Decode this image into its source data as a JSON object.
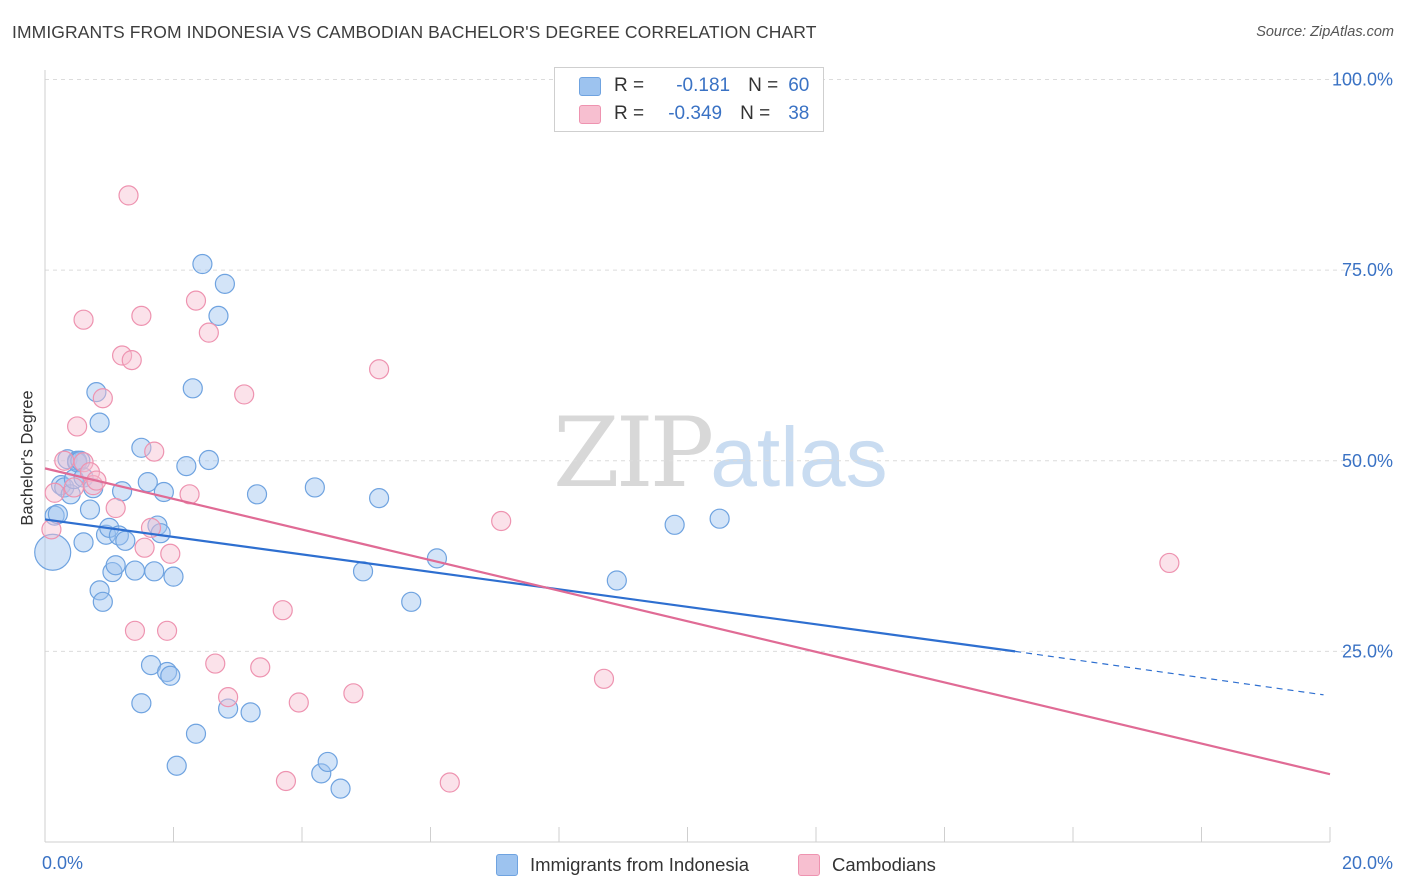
{
  "title": "IMMIGRANTS FROM INDONESIA VS CAMBODIAN BACHELOR'S DEGREE CORRELATION CHART",
  "source": "Source: ZipAtlas.com",
  "watermark": {
    "zip": "ZIP",
    "atlas": "atlas"
  },
  "legend": {
    "r_label": "R =",
    "n_label": "N =",
    "rows": [
      {
        "r": "-0.181",
        "n": "60",
        "color": "#9dc3ef",
        "border": "#6fa3e0"
      },
      {
        "r": "-0.349",
        "n": "38",
        "color": "#f7bfd0",
        "border": "#ee93b0"
      }
    ]
  },
  "chart_data": {
    "type": "scatter",
    "xlabel": "",
    "ylabel": "Bachelor's Degree",
    "xlim": [
      0,
      20
    ],
    "ylim": [
      0,
      105
    ],
    "x_tick_labels": [
      {
        "value": 0,
        "label": "0.0%"
      },
      {
        "value": 20,
        "label": "20.0%"
      }
    ],
    "y_tick_labels": [
      {
        "value": 25,
        "label": "25.0%"
      },
      {
        "value": 50,
        "label": "50.0%"
      },
      {
        "value": 75,
        "label": "75.0%"
      },
      {
        "value": 100,
        "label": "100.0%"
      }
    ],
    "grid": true,
    "legend_position": "bottom",
    "series": [
      {
        "name": "Immigrants from Indonesia",
        "color": "#9dc3ef",
        "stroke": "#6fa3e0",
        "line_color": "#2e6fd0",
        "trend": {
          "x0": 0,
          "y0": 42.3,
          "x1": 15.1,
          "y1": 25.0,
          "dash_x1": 19.9,
          "dash_y1": 19.3
        },
        "points": [
          [
            0.12,
            38.0
          ],
          [
            0.15,
            42.8
          ],
          [
            0.2,
            43.0
          ],
          [
            0.25,
            46.8
          ],
          [
            0.3,
            46.5
          ],
          [
            0.35,
            50.2
          ],
          [
            0.4,
            45.6
          ],
          [
            0.45,
            47.6
          ],
          [
            0.5,
            50.0
          ],
          [
            0.5,
            49.8
          ],
          [
            0.55,
            50.0
          ],
          [
            0.6,
            47.8
          ],
          [
            0.6,
            39.3
          ],
          [
            0.7,
            43.6
          ],
          [
            0.75,
            46.4
          ],
          [
            0.8,
            59.0
          ],
          [
            0.85,
            55.0
          ],
          [
            0.85,
            33.0
          ],
          [
            0.9,
            31.5
          ],
          [
            0.95,
            40.3
          ],
          [
            1.0,
            41.2
          ],
          [
            1.05,
            35.4
          ],
          [
            1.1,
            36.3
          ],
          [
            1.15,
            40.2
          ],
          [
            1.2,
            46.0
          ],
          [
            1.25,
            39.5
          ],
          [
            1.4,
            35.6
          ],
          [
            1.5,
            51.7
          ],
          [
            1.5,
            18.2
          ],
          [
            1.6,
            47.2
          ],
          [
            1.65,
            23.2
          ],
          [
            1.7,
            35.5
          ],
          [
            1.75,
            41.5
          ],
          [
            1.8,
            40.5
          ],
          [
            1.85,
            45.9
          ],
          [
            1.9,
            22.3
          ],
          [
            1.95,
            21.8
          ],
          [
            2.0,
            34.8
          ],
          [
            2.05,
            10.0
          ],
          [
            2.2,
            49.3
          ],
          [
            2.3,
            59.5
          ],
          [
            2.35,
            14.2
          ],
          [
            2.45,
            75.8
          ],
          [
            2.55,
            50.1
          ],
          [
            2.7,
            69.0
          ],
          [
            2.8,
            73.2
          ],
          [
            2.85,
            17.5
          ],
          [
            3.2,
            17.0
          ],
          [
            3.3,
            45.6
          ],
          [
            4.2,
            46.5
          ],
          [
            4.3,
            9.0
          ],
          [
            4.4,
            10.5
          ],
          [
            4.6,
            7.0
          ],
          [
            4.95,
            35.5
          ],
          [
            5.2,
            45.1
          ],
          [
            5.7,
            31.5
          ],
          [
            6.1,
            37.2
          ],
          [
            8.9,
            34.3
          ],
          [
            9.8,
            41.6
          ],
          [
            10.5,
            42.4
          ]
        ],
        "sizes": {
          "0": 36
        }
      },
      {
        "name": "Cambodians",
        "color": "#f7bfd0",
        "stroke": "#ee93b0",
        "line_color": "#e06b95",
        "trend": {
          "x0": 0,
          "y0": 49.0,
          "x1": 20.0,
          "y1": 8.9
        },
        "points": [
          [
            0.1,
            41.0
          ],
          [
            0.15,
            45.8
          ],
          [
            0.3,
            50.0
          ],
          [
            0.45,
            46.5
          ],
          [
            0.5,
            54.5
          ],
          [
            0.6,
            49.8
          ],
          [
            0.6,
            68.5
          ],
          [
            0.7,
            48.5
          ],
          [
            0.75,
            46.8
          ],
          [
            0.8,
            47.4
          ],
          [
            0.9,
            58.2
          ],
          [
            1.1,
            43.8
          ],
          [
            1.2,
            63.8
          ],
          [
            1.3,
            84.8
          ],
          [
            1.35,
            63.2
          ],
          [
            1.4,
            27.7
          ],
          [
            1.5,
            69.0
          ],
          [
            1.55,
            38.6
          ],
          [
            1.65,
            41.2
          ],
          [
            1.7,
            51.2
          ],
          [
            1.9,
            27.7
          ],
          [
            1.95,
            37.8
          ],
          [
            2.25,
            45.6
          ],
          [
            2.35,
            71.0
          ],
          [
            2.55,
            66.8
          ],
          [
            2.65,
            23.4
          ],
          [
            2.85,
            19.0
          ],
          [
            3.1,
            58.7
          ],
          [
            3.35,
            22.9
          ],
          [
            3.7,
            30.4
          ],
          [
            3.75,
            8.0
          ],
          [
            3.95,
            18.3
          ],
          [
            4.8,
            19.5
          ],
          [
            5.2,
            62.0
          ],
          [
            6.3,
            7.8
          ],
          [
            7.1,
            42.1
          ],
          [
            8.7,
            21.4
          ],
          [
            17.5,
            36.6
          ]
        ]
      }
    ]
  }
}
